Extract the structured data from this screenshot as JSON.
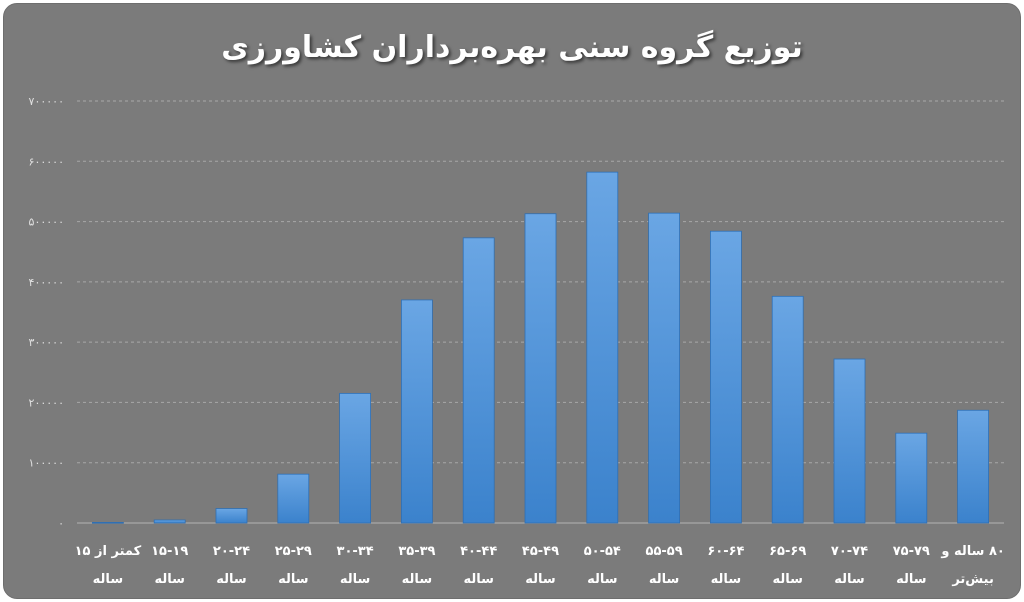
{
  "chart_data": {
    "type": "bar",
    "title": "توزیع گروه سنی بهره‌برداران کشاورزی",
    "xlabel": "",
    "ylabel": "",
    "ylim": [
      0,
      700000
    ],
    "y_ticks": [
      0,
      100000,
      200000,
      300000,
      400000,
      500000,
      600000,
      700000
    ],
    "y_tick_labels": [
      "۰",
      "۱۰۰۰۰۰",
      "۲۰۰۰۰۰",
      "۳۰۰۰۰۰",
      "۴۰۰۰۰۰",
      "۵۰۰۰۰۰",
      "۶۰۰۰۰۰",
      "۷۰۰۰۰۰"
    ],
    "grid": true,
    "bar_color": "#4a90d9",
    "categories": [
      [
        "کمتر از ۱۵",
        "ساله"
      ],
      [
        "۱۵-۱۹",
        "ساله"
      ],
      [
        "۲۰-۲۴",
        "ساله"
      ],
      [
        "۲۵-۲۹",
        "ساله"
      ],
      [
        "۳۰-۳۴",
        "ساله"
      ],
      [
        "۳۵-۳۹",
        "ساله"
      ],
      [
        "۴۰-۴۴",
        "ساله"
      ],
      [
        "۴۵-۴۹",
        "ساله"
      ],
      [
        "۵۰-۵۴",
        "ساله"
      ],
      [
        "۵۵-۵۹",
        "ساله"
      ],
      [
        "۶۰-۶۴",
        "ساله"
      ],
      [
        "۶۵-۶۹",
        "ساله"
      ],
      [
        "۷۰-۷۴",
        "ساله"
      ],
      [
        "۷۵-۷۹",
        "ساله"
      ],
      [
        "۸۰ ساله و",
        "بیش‌تر"
      ]
    ],
    "values": [
      1000,
      5000,
      24000,
      81000,
      215000,
      370000,
      473000,
      513000,
      582000,
      514000,
      484000,
      376000,
      272000,
      149000,
      187000
    ]
  }
}
